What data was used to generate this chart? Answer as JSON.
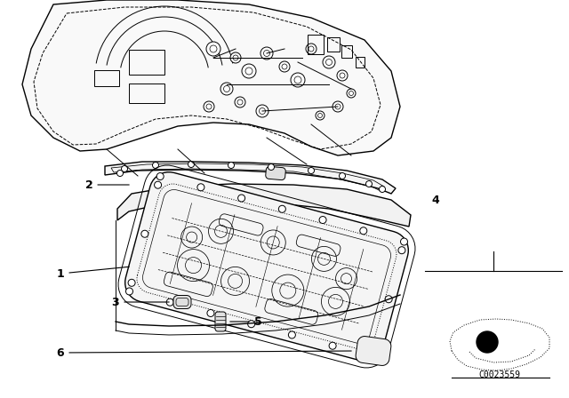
{
  "background_color": "#ffffff",
  "code": "C0023559",
  "line_color": "#000000",
  "text_color": "#000000",
  "engine_color": "#ffffff",
  "pan_color": "#ffffff",
  "gasket_color": "#ffffff"
}
